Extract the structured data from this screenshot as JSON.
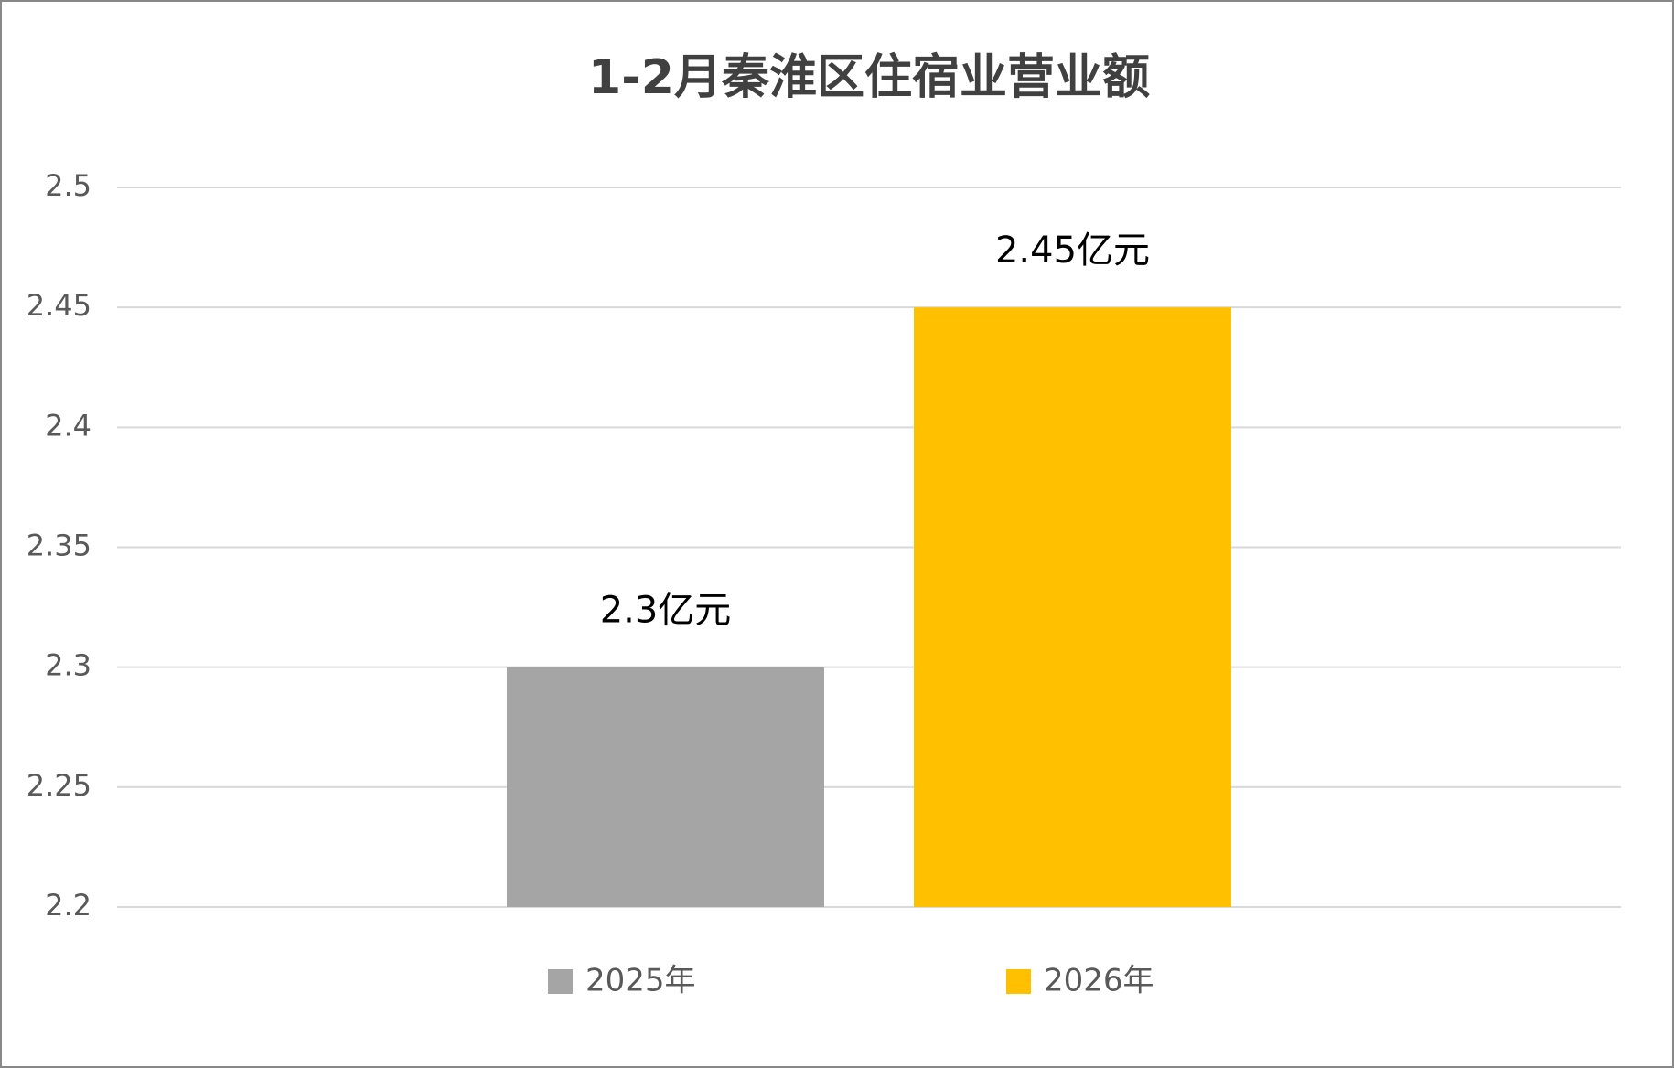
{
  "chart_data": {
    "type": "bar",
    "title": "1-2月秦淮区住宿业营业额",
    "categories": [
      null
    ],
    "series": [
      {
        "name": "2025年",
        "color": "#a5a5a5",
        "values": [
          2.3
        ],
        "value_labels": [
          "2.3亿元"
        ]
      },
      {
        "name": "2026年",
        "color": "#ffc000",
        "values": [
          2.45
        ],
        "value_labels": [
          "2.45亿元"
        ]
      }
    ],
    "ylim": [
      2.2,
      2.5
    ],
    "yticks": [
      2.2,
      2.25,
      2.3,
      2.35,
      2.4,
      2.45,
      2.5
    ],
    "grid": true,
    "legend": "bottom"
  }
}
